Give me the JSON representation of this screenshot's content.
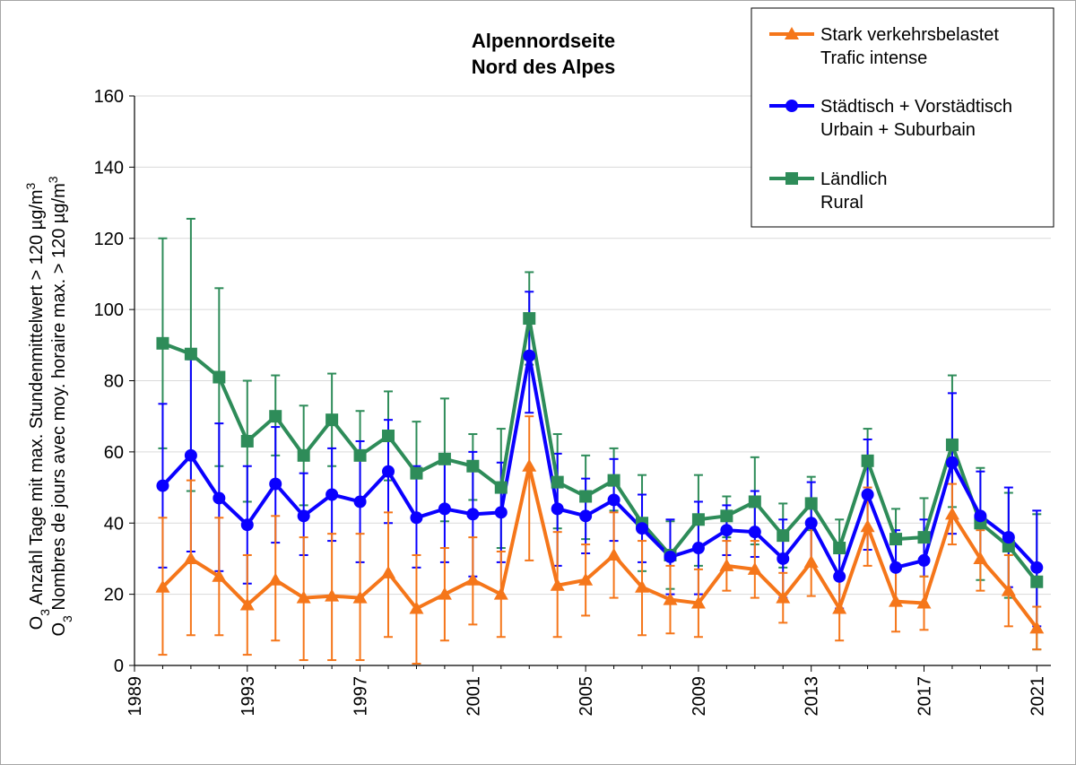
{
  "chart_data": {
    "type": "line",
    "title": [
      "Alpennordseite",
      "Nord des Alpes"
    ],
    "ylabel": [
      {
        "pre": "O",
        "sub": "3",
        "mid": " Anzahl Tage mit max. Stundenmittelwert > 120 µg/m",
        "sup": "3"
      },
      {
        "pre": "O",
        "sub": "3",
        "mid": " Nombres de jours avec moy. horaire max. > 120 µg/m",
        "sup": "3"
      }
    ],
    "ylim": [
      0,
      160
    ],
    "yticks": [
      0,
      20,
      40,
      60,
      80,
      100,
      120,
      140,
      160
    ],
    "xlim": [
      1989,
      2021.5
    ],
    "xticks": [
      "1989",
      "1993",
      "1997",
      "2001",
      "2005",
      "2009",
      "2013",
      "2017",
      "2021"
    ],
    "x": [
      1990,
      1991,
      1992,
      1993,
      1994,
      1995,
      1996,
      1997,
      1998,
      1999,
      2000,
      2001,
      2002,
      2003,
      2004,
      2005,
      2006,
      2007,
      2008,
      2009,
      2010,
      2011,
      2012,
      2013,
      2014,
      2015,
      2016,
      2017,
      2018,
      2019,
      2020,
      2021
    ],
    "series": [
      {
        "name": "Stark verkehrsbelastet",
        "name2": "Trafic intense",
        "color": "#f5761a",
        "marker": "triangle",
        "values": [
          22,
          30,
          25,
          17,
          24,
          19,
          19.5,
          19,
          26,
          16,
          20,
          24,
          20,
          56,
          22.5,
          24,
          31,
          22,
          18.5,
          17.5,
          28,
          27,
          19,
          29,
          16,
          39,
          18,
          17.5,
          42.5,
          30,
          21,
          10.5
        ],
        "err_low": [
          3,
          8.5,
          8.5,
          3,
          7,
          1.5,
          1.5,
          1.5,
          8,
          0.5,
          7,
          11.5,
          8,
          29.5,
          8,
          14,
          19,
          8.5,
          9,
          8,
          21,
          19,
          12,
          19.5,
          7,
          28,
          9.5,
          10,
          34,
          21,
          11,
          4.5
        ],
        "err_high": [
          41.5,
          52,
          41.5,
          31,
          42,
          36,
          37,
          37,
          43,
          31,
          33,
          36,
          32,
          70,
          37.5,
          34,
          43,
          35,
          28,
          27,
          35,
          35,
          26,
          39,
          25,
          50,
          27,
          25,
          51,
          38,
          31,
          16.5
        ]
      },
      {
        "name": "Städtisch + Vorstädtisch",
        "name2": "Urbain + Suburbain",
        "color": "#0a00ff",
        "marker": "circle",
        "values": [
          50.5,
          59,
          47,
          39.5,
          51,
          42,
          48,
          46,
          54.5,
          41.5,
          44,
          42.5,
          43,
          87,
          44,
          42,
          46.5,
          38.5,
          30.5,
          33,
          38,
          37.5,
          30,
          40,
          25,
          48,
          27.5,
          29.5,
          57,
          42,
          36,
          27.5
        ],
        "err_low": [
          27.5,
          32,
          26.5,
          23,
          34.5,
          31,
          35,
          29,
          40,
          27.5,
          29,
          25,
          29,
          71,
          28,
          31.5,
          35,
          29,
          20,
          20,
          31,
          30.5,
          19,
          28.5,
          16,
          32.5,
          17,
          17,
          37,
          29,
          22,
          11
        ],
        "err_high": [
          73.5,
          86,
          68,
          56,
          67,
          54,
          61,
          63,
          69,
          56,
          59,
          60,
          57,
          105,
          59.5,
          52.5,
          58,
          48,
          41,
          46,
          45,
          49,
          41,
          51.5,
          34,
          63.5,
          38,
          41,
          76.5,
          54.5,
          50,
          43.5
        ]
      },
      {
        "name": "Ländlich",
        "name2": "Rural",
        "color": "#2e8c59",
        "marker": "square",
        "values": [
          90.5,
          87.5,
          81,
          63,
          70,
          59,
          69,
          59,
          64.5,
          54,
          58,
          56,
          50,
          97.5,
          51.5,
          47.5,
          52,
          40,
          31,
          41,
          42,
          46,
          36.5,
          45.5,
          33,
          57.5,
          35.5,
          36,
          62,
          40,
          33.5,
          23.5
        ],
        "err_low": [
          61,
          49,
          56,
          46,
          59,
          45,
          56,
          46,
          52,
          40.5,
          40.5,
          46.5,
          33,
          84.5,
          38.5,
          35.5,
          43.5,
          26.5,
          21.5,
          28,
          36,
          34,
          27.5,
          38,
          24.5,
          48.5,
          27,
          25,
          44.5,
          24,
          19,
          4.5
        ],
        "err_high": [
          120,
          125.5,
          106,
          80,
          81.5,
          73,
          82,
          71.5,
          77,
          68.5,
          75,
          65,
          66.5,
          110.5,
          65,
          59,
          61,
          53.5,
          40.5,
          53.5,
          47.5,
          58.5,
          45.5,
          53,
          41,
          66.5,
          44,
          47,
          81.5,
          55.5,
          48.5,
          42.5
        ]
      }
    ],
    "legend_position": "top-right"
  }
}
